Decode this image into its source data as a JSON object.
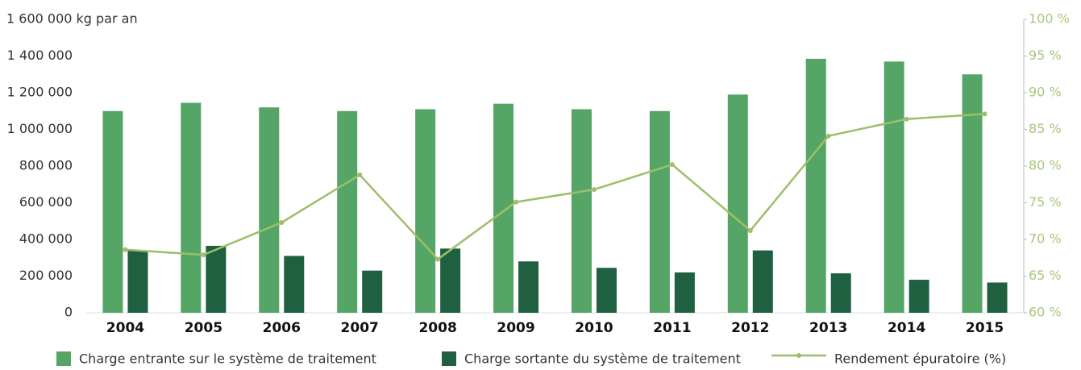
{
  "chart_data": {
    "type": "bar",
    "categories": [
      "2004",
      "2005",
      "2006",
      "2007",
      "2008",
      "2009",
      "2010",
      "2011",
      "2012",
      "2013",
      "2014",
      "2015"
    ],
    "series": [
      {
        "name": "Charge entrante sur le système de traitement",
        "color": "#55a567",
        "type": "bar",
        "values": [
          1100000,
          1145000,
          1120000,
          1100000,
          1110000,
          1140000,
          1110000,
          1100000,
          1190000,
          1385000,
          1370000,
          1300000
        ]
      },
      {
        "name": "Charge sortante du système de traitement",
        "color": "#1e6040",
        "type": "bar",
        "values": [
          340000,
          365000,
          310000,
          230000,
          350000,
          280000,
          245000,
          220000,
          340000,
          215000,
          180000,
          165000
        ]
      },
      {
        "name": "Rendement épuratoire (%)",
        "color": "#9dbf6a",
        "type": "line",
        "axis": "y2",
        "values": [
          68.6,
          67.9,
          72.3,
          78.8,
          67.3,
          75.1,
          76.8,
          80.2,
          71.2,
          84.1,
          86.4,
          87.1
        ]
      }
    ],
    "ylim": [
      0,
      1600000
    ],
    "yticks": [
      0,
      {
        "value": 200000,
        "label": "200 000"
      },
      {
        "value": 400000,
        "label": "400 000"
      },
      {
        "value": 600000,
        "label": "600 000"
      },
      {
        "value": 800000,
        "label": "800 000"
      },
      {
        "value": 1000000,
        "label": "1 000 000"
      },
      {
        "value": 1200000,
        "label": "1 200 000"
      },
      {
        "value": 1400000,
        "label": "1 400 000"
      },
      {
        "value": 1600000,
        "label": "1 600 000 kg par an"
      }
    ],
    "y2lim": [
      60,
      100
    ],
    "y2ticks": [
      {
        "value": 60,
        "label": "60 %"
      },
      {
        "value": 65,
        "label": "65 %"
      },
      {
        "value": 70,
        "label": "70 %"
      },
      {
        "value": 75,
        "label": "75 %"
      },
      {
        "value": 80,
        "label": "80 %"
      },
      {
        "value": 85,
        "label": "85 %"
      },
      {
        "value": 90,
        "label": "90 %"
      },
      {
        "value": 95,
        "label": "95 %"
      },
      {
        "value": 100,
        "label": "100 %"
      }
    ],
    "y2color": "#a8c77c",
    "grid": false,
    "legend": "bottom"
  }
}
